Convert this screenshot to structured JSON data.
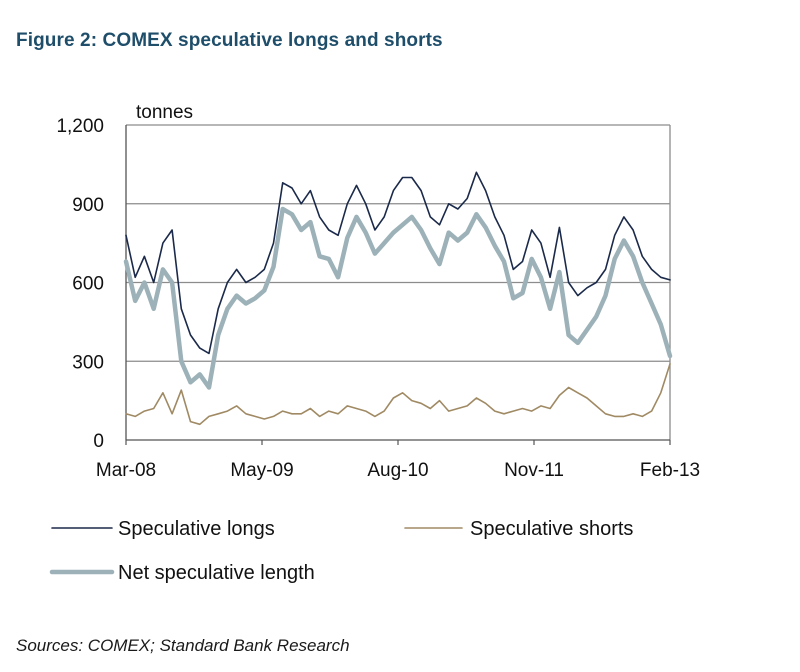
{
  "title": "Figure 2: COMEX speculative longs and shorts",
  "source": "Sources: COMEX; Standard Bank Research",
  "chart_data": {
    "type": "line",
    "title": "Figure 2: COMEX speculative longs and shorts",
    "ylabel": "tonnes",
    "xlabel": "",
    "ylim": [
      0,
      1200
    ],
    "yticks": [
      0,
      300,
      600,
      900,
      1200
    ],
    "ytick_labels": [
      "0",
      "300",
      "600",
      "900",
      "1,200"
    ],
    "xlim": [
      "2008-03",
      "2013-02"
    ],
    "xtick_labels": [
      "Mar-08",
      "May-09",
      "Aug-10",
      "Nov-11",
      "Feb-13"
    ],
    "grid": "horizontal",
    "legend_position": "bottom",
    "x": [
      "2008-03",
      "2008-04",
      "2008-05",
      "2008-06",
      "2008-07",
      "2008-08",
      "2008-09",
      "2008-10",
      "2008-11",
      "2008-12",
      "2009-01",
      "2009-02",
      "2009-03",
      "2009-04",
      "2009-05",
      "2009-06",
      "2009-07",
      "2009-08",
      "2009-09",
      "2009-10",
      "2009-11",
      "2009-12",
      "2010-01",
      "2010-02",
      "2010-03",
      "2010-04",
      "2010-05",
      "2010-06",
      "2010-07",
      "2010-08",
      "2010-09",
      "2010-10",
      "2010-11",
      "2010-12",
      "2011-01",
      "2011-02",
      "2011-03",
      "2011-04",
      "2011-05",
      "2011-06",
      "2011-07",
      "2011-08",
      "2011-09",
      "2011-10",
      "2011-11",
      "2011-12",
      "2012-01",
      "2012-02",
      "2012-03",
      "2012-04",
      "2012-05",
      "2012-06",
      "2012-07",
      "2012-08",
      "2012-09",
      "2012-10",
      "2012-11",
      "2012-12",
      "2013-01",
      "2013-02"
    ],
    "series": [
      {
        "name": "Speculative longs",
        "color": "#1b2a4a",
        "values": [
          780,
          620,
          700,
          600,
          750,
          800,
          500,
          400,
          350,
          330,
          500,
          600,
          650,
          600,
          620,
          650,
          750,
          980,
          960,
          900,
          950,
          850,
          800,
          780,
          900,
          970,
          900,
          800,
          850,
          950,
          1000,
          1000,
          950,
          850,
          820,
          900,
          880,
          920,
          1020,
          950,
          850,
          780,
          650,
          680,
          800,
          750,
          620,
          810,
          600,
          550,
          580,
          600,
          650,
          780,
          850,
          800,
          700,
          650,
          620,
          610
        ]
      },
      {
        "name": "Speculative shorts",
        "color": "#a08a64",
        "values": [
          100,
          90,
          110,
          120,
          180,
          100,
          190,
          70,
          60,
          90,
          100,
          110,
          130,
          100,
          90,
          80,
          90,
          110,
          100,
          100,
          120,
          90,
          110,
          100,
          130,
          120,
          110,
          90,
          110,
          160,
          180,
          150,
          140,
          120,
          150,
          110,
          120,
          130,
          160,
          140,
          110,
          100,
          110,
          120,
          110,
          130,
          120,
          170,
          200,
          180,
          160,
          130,
          100,
          90,
          90,
          100,
          90,
          110,
          180,
          290
        ]
      },
      {
        "name": "Net speculative length",
        "color": "#9cb2b8",
        "values": [
          680,
          530,
          600,
          500,
          650,
          600,
          300,
          220,
          250,
          200,
          400,
          500,
          550,
          520,
          540,
          570,
          660,
          880,
          860,
          800,
          830,
          700,
          690,
          620,
          770,
          850,
          790,
          710,
          750,
          790,
          820,
          850,
          800,
          730,
          670,
          790,
          760,
          790,
          860,
          810,
          740,
          680,
          540,
          560,
          690,
          620,
          500,
          640,
          400,
          370,
          420,
          470,
          550,
          690,
          760,
          700,
          600,
          520,
          440,
          320
        ]
      }
    ]
  }
}
